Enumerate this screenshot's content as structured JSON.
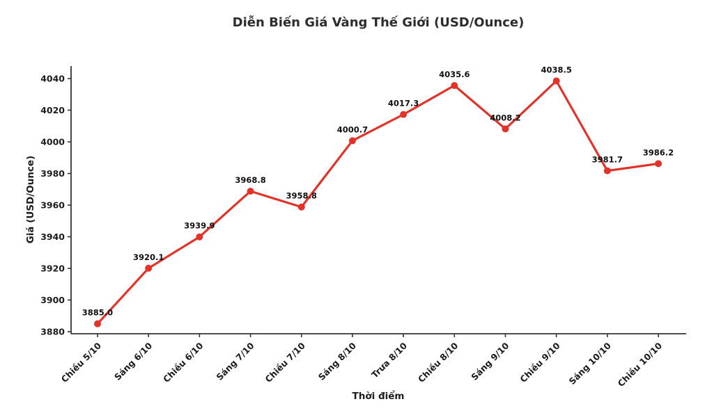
{
  "chart_data": {
    "type": "line",
    "title": "Diễn Biến Giá Vàng Thế Giới (USD/Ounce)",
    "xlabel": "Thời điểm",
    "ylabel": "Giá (USD/Ounce)",
    "categories": [
      "Chiều 5/10",
      "Sáng 6/10",
      "Chiều 6/10",
      "Sáng 7/10",
      "Chiều 7/10",
      "Sáng 8/10",
      "Trưa 8/10",
      "Chiều 8/10",
      "Sáng 9/10",
      "Chiều 9/10",
      "Sáng 10/10",
      "Chiều 10/10"
    ],
    "values": [
      3885.0,
      3920.1,
      3939.9,
      3968.8,
      3958.8,
      4000.7,
      4017.3,
      4035.6,
      4008.2,
      4038.5,
      3981.7,
      3986.2
    ],
    "point_labels": [
      "3885.0",
      "3920.1",
      "3939.9",
      "3968.8",
      "3958.8",
      "4000.7",
      "4017.3",
      "4035.6",
      "4008.2",
      "4038.5",
      "3981.7",
      "3986.2"
    ],
    "y_ticks": [
      3880,
      3900,
      3920,
      3940,
      3960,
      3980,
      4000,
      4020,
      4040
    ],
    "ylim": [
      3878.7,
      4047.9
    ],
    "x_tick_rotation": -45,
    "grid": false,
    "legend": "none",
    "line_color": "#e0342a",
    "marker_color": "#e0342a",
    "axis_color": "#333333",
    "tick_text_color": "#1c1c1c",
    "title_color": "#2d2d2d"
  }
}
